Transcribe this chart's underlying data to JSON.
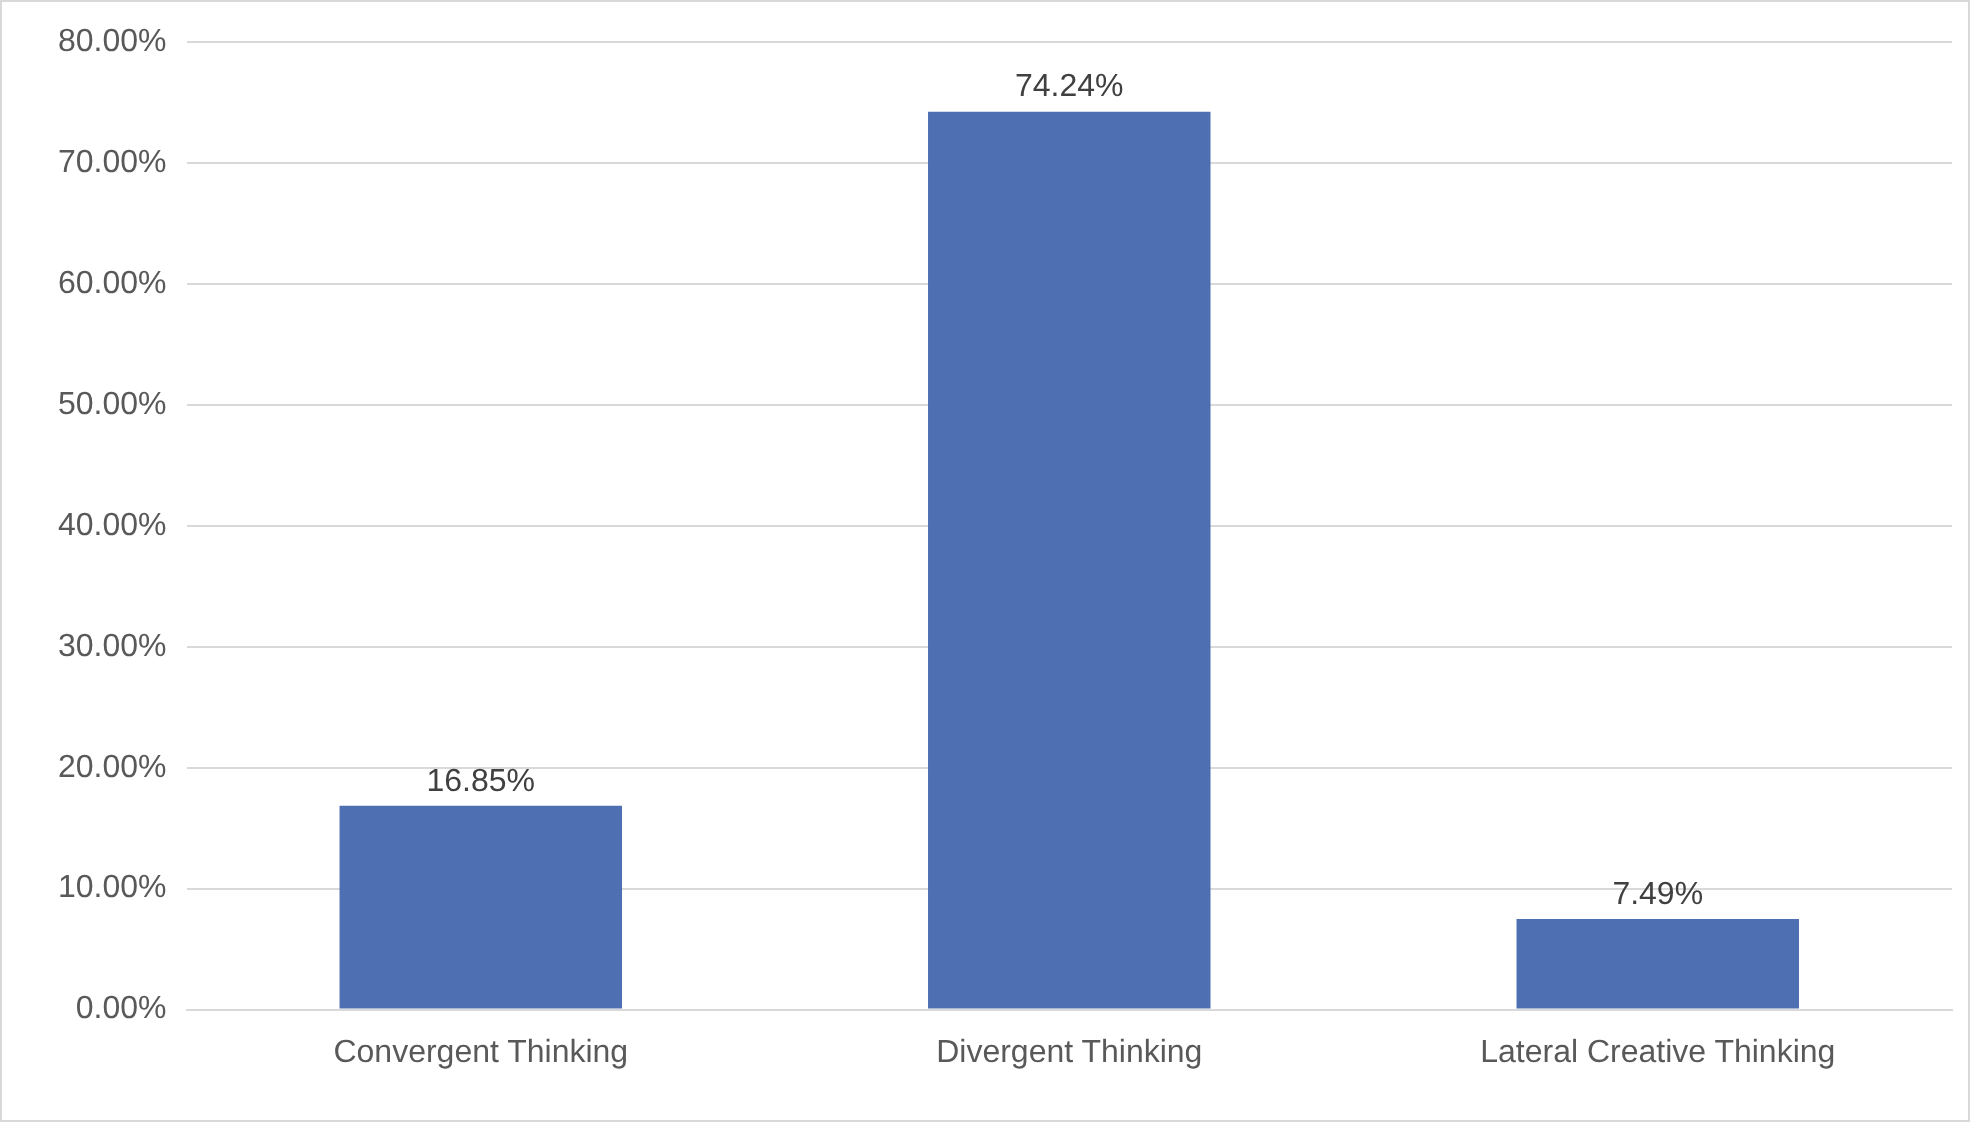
{
  "chart_data": {
    "type": "bar",
    "categories": [
      "Convergent Thinking",
      "Divergent Thinking",
      "Lateral Creative Thinking"
    ],
    "values": [
      16.85,
      74.24,
      7.49
    ],
    "color": "#4f6fb3",
    "value_labels": [
      "16.85%",
      "74.24%",
      "7.49%"
    ],
    "ylim": [
      0,
      80
    ],
    "yticks": [
      {
        "value": 0,
        "label": "0.00%"
      },
      {
        "value": 10,
        "label": "10.00%"
      },
      {
        "value": 20,
        "label": "20.00%"
      },
      {
        "value": 30,
        "label": "30.00%"
      },
      {
        "value": 40,
        "label": "40.00%"
      },
      {
        "value": 50,
        "label": "50.00%"
      },
      {
        "value": 60,
        "label": "60.00%"
      },
      {
        "value": 70,
        "label": "70.00%"
      },
      {
        "value": 80,
        "label": "80.00%"
      }
    ],
    "grid": "y"
  }
}
